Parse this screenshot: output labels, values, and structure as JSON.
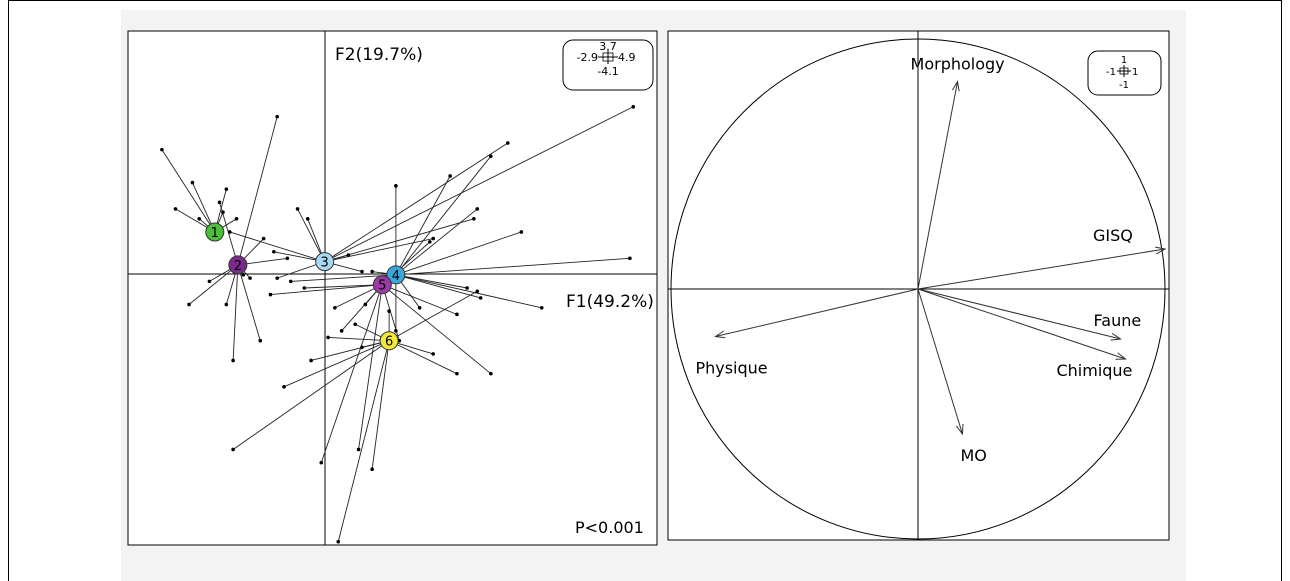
{
  "chart_data": [
    {
      "type": "scatter",
      "subtype": "pca-individuals-star-plot",
      "x_axis_label": "F1(49.2%)",
      "y_axis_label": "F2(19.7%)",
      "annotation": "P<0.001",
      "scale_box": {
        "top": "3.7",
        "left": "-2.9",
        "right": "4.9",
        "bottom": "-4.1"
      },
      "xlim": [
        -2.9,
        4.9
      ],
      "ylim": [
        -4.1,
        3.7
      ],
      "groups": [
        {
          "label": "1",
          "color": "#4bbf3a",
          "centroid": [
            -1.62,
            0.65
          ],
          "points": [
            [
              -2.4,
              1.9
            ],
            [
              -1.95,
              1.4
            ],
            [
              -2.2,
              1.0
            ],
            [
              -1.85,
              0.85
            ],
            [
              -1.45,
              1.3
            ],
            [
              -1.5,
              0.95
            ],
            [
              -1.3,
              0.85
            ]
          ]
        },
        {
          "label": "2",
          "color": "#7a2a8c",
          "centroid": [
            -1.28,
            0.15
          ],
          "points": [
            [
              -0.7,
              2.4
            ],
            [
              -1.55,
              1.1
            ],
            [
              -0.9,
              0.55
            ],
            [
              -2.0,
              -0.45
            ],
            [
              -1.7,
              -0.1
            ],
            [
              -1.35,
              -1.3
            ],
            [
              -0.95,
              -1.0
            ],
            [
              -0.55,
              0.25
            ],
            [
              -1.1,
              -0.05
            ],
            [
              -1.45,
              -0.45
            ],
            [
              -1.2,
              0.0
            ]
          ]
        },
        {
          "label": "3",
          "color": "#a9d9f2",
          "centroid": [
            0.0,
            0.2
          ],
          "points": [
            [
              -1.4,
              0.65
            ],
            [
              -0.75,
              0.35
            ],
            [
              -0.4,
              1.0
            ],
            [
              2.7,
              2.0
            ],
            [
              1.6,
              0.55
            ],
            [
              0.55,
              0.05
            ],
            [
              -0.7,
              -0.05
            ],
            [
              4.55,
              2.55
            ],
            [
              -0.25,
              0.85
            ],
            [
              0.35,
              0.3
            ],
            [
              2.2,
              0.85
            ]
          ]
        },
        {
          "label": "4",
          "color": "#3aa6d9",
          "centroid": [
            1.05,
            0.0
          ],
          "points": [
            [
              1.05,
              1.35
            ],
            [
              1.85,
              1.5
            ],
            [
              2.45,
              1.8
            ],
            [
              2.25,
              1.0
            ],
            [
              2.9,
              0.65
            ],
            [
              4.5,
              0.25
            ],
            [
              2.3,
              -0.35
            ],
            [
              1.4,
              -0.5
            ],
            [
              -0.5,
              -0.1
            ],
            [
              0.7,
              0.05
            ],
            [
              1.05,
              -0.85
            ],
            [
              3.2,
              -0.5
            ],
            [
              2.1,
              -0.2
            ]
          ]
        },
        {
          "label": "5",
          "color": "#9b3aa6",
          "centroid": [
            0.85,
            -0.15
          ],
          "points": [
            [
              0.25,
              -0.85
            ],
            [
              1.1,
              -1.0
            ],
            [
              0.5,
              -2.65
            ],
            [
              -0.05,
              -2.85
            ],
            [
              2.45,
              -1.5
            ],
            [
              1.95,
              -0.6
            ],
            [
              -0.8,
              -0.3
            ],
            [
              0.6,
              -0.45
            ],
            [
              -0.3,
              -0.2
            ],
            [
              1.55,
              0.5
            ],
            [
              0.15,
              -0.5
            ]
          ]
        },
        {
          "label": "6",
          "color": "#f2ea3a",
          "centroid": [
            0.95,
            -1.0
          ],
          "points": [
            [
              -0.2,
              -1.3
            ],
            [
              0.45,
              -0.75
            ],
            [
              0.95,
              -0.55
            ],
            [
              -1.35,
              -2.65
            ],
            [
              -0.6,
              -1.7
            ],
            [
              0.2,
              -4.05
            ],
            [
              0.7,
              -2.95
            ],
            [
              2.25,
              -0.25
            ],
            [
              1.95,
              -1.5
            ],
            [
              0.55,
              -1.1
            ],
            [
              0.05,
              -0.95
            ],
            [
              1.6,
              -1.2
            ]
          ]
        }
      ]
    },
    {
      "type": "scatter",
      "subtype": "pca-correlation-circle",
      "scale_box": {
        "top": "1",
        "left": "-1",
        "right": "1",
        "bottom": "-1"
      },
      "xlim": [
        -1,
        1
      ],
      "ylim": [
        -1,
        1
      ],
      "variables": [
        {
          "name": "Morphology",
          "x": 0.16,
          "y": 0.83
        },
        {
          "name": "GISQ",
          "x": 1.0,
          "y": 0.16
        },
        {
          "name": "Faune",
          "x": 0.82,
          "y": -0.2
        },
        {
          "name": "Chimique",
          "x": 0.84,
          "y": -0.28
        },
        {
          "name": "Physique",
          "x": -0.82,
          "y": -0.19
        },
        {
          "name": "MO",
          "x": 0.18,
          "y": -0.58
        }
      ]
    }
  ]
}
